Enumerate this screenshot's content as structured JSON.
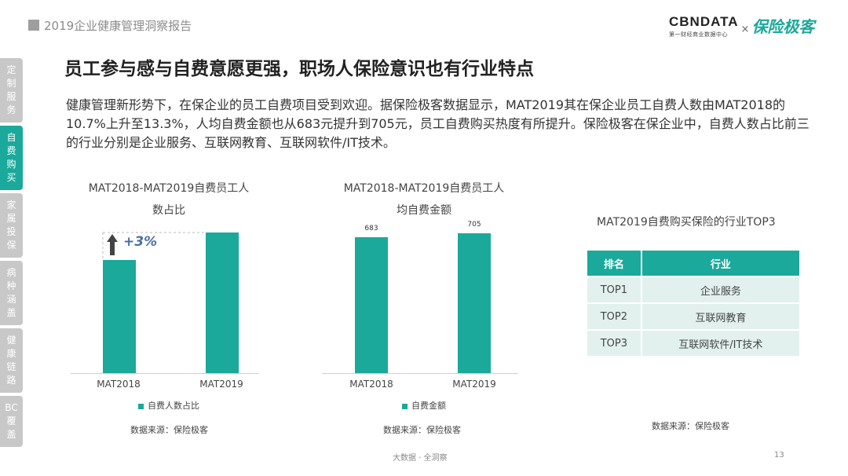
{
  "header": {
    "report_title": "2019企业健康管理洞察报告",
    "brand_cbn": "CBNDATA",
    "brand_cbn_sub": "第一财经商业数据中心",
    "brand_cross": "×",
    "brand_partner": "保险极客"
  },
  "sidebar": {
    "items": [
      {
        "label": "定制服务"
      },
      {
        "label": "自费购买"
      },
      {
        "label": "家属投保"
      },
      {
        "label": "病种涵盖"
      },
      {
        "label": "健康链路"
      },
      {
        "label": "BC覆盖"
      }
    ],
    "active_index": 1
  },
  "main": {
    "title": "员工参与感与自费意愿更强，职场人保险意识也有行业特点",
    "intro": "健康管理新形势下，在保企业的员工自费项目受到欢迎。据保险极客数据显示，MAT2019其在保企业员工自费人数由MAT2018的10.7%上升至13.3%，人均自费金额也从683元提升到705元，员工自费购买热度有所提升。保险极客在保企业中，自费人数占比前三的行业分别是企业服务、互联网教育、互联网软件/IT技术。"
  },
  "chart_data": [
    {
      "type": "bar",
      "title_line1": "MAT2018-MAT2019自费员工人",
      "title_line2": "数占比",
      "categories": [
        "MAT2018",
        "MAT2019"
      ],
      "series": [
        {
          "name": "自费人数占比",
          "values": [
            10.7,
            13.3
          ]
        }
      ],
      "annotation": "+3%",
      "ylim": [
        0,
        14.5
      ],
      "source": "数据来源：保险极客",
      "grid": false
    },
    {
      "type": "bar",
      "title_line1": "MAT2018-MAT2019自费员工人",
      "title_line2": "均自费金额",
      "categories": [
        "MAT2018",
        "MAT2019"
      ],
      "series": [
        {
          "name": "自费金额",
          "values": [
            683,
            705
          ]
        }
      ],
      "data_labels": [
        "683",
        "705"
      ],
      "ylim": [
        0,
        770
      ],
      "source": "数据来源：保险极客",
      "grid": false
    },
    {
      "type": "table",
      "title": "MAT2019自费购买保险的行业TOP3",
      "columns": [
        "排名",
        "行业"
      ],
      "rows": [
        [
          "TOP1",
          "企业服务"
        ],
        [
          "TOP2",
          "互联网教育"
        ],
        [
          "TOP3",
          "互联网软件/IT技术"
        ]
      ],
      "source": "数据来源：保险极客"
    }
  ],
  "footer": {
    "tagline": "大数据 · 全洞察",
    "page_number": "13"
  },
  "colors": {
    "accent": "#1aa99a",
    "table_row_bg": "#e2f1ee",
    "sidebar_inactive": "#c8c8c8"
  }
}
